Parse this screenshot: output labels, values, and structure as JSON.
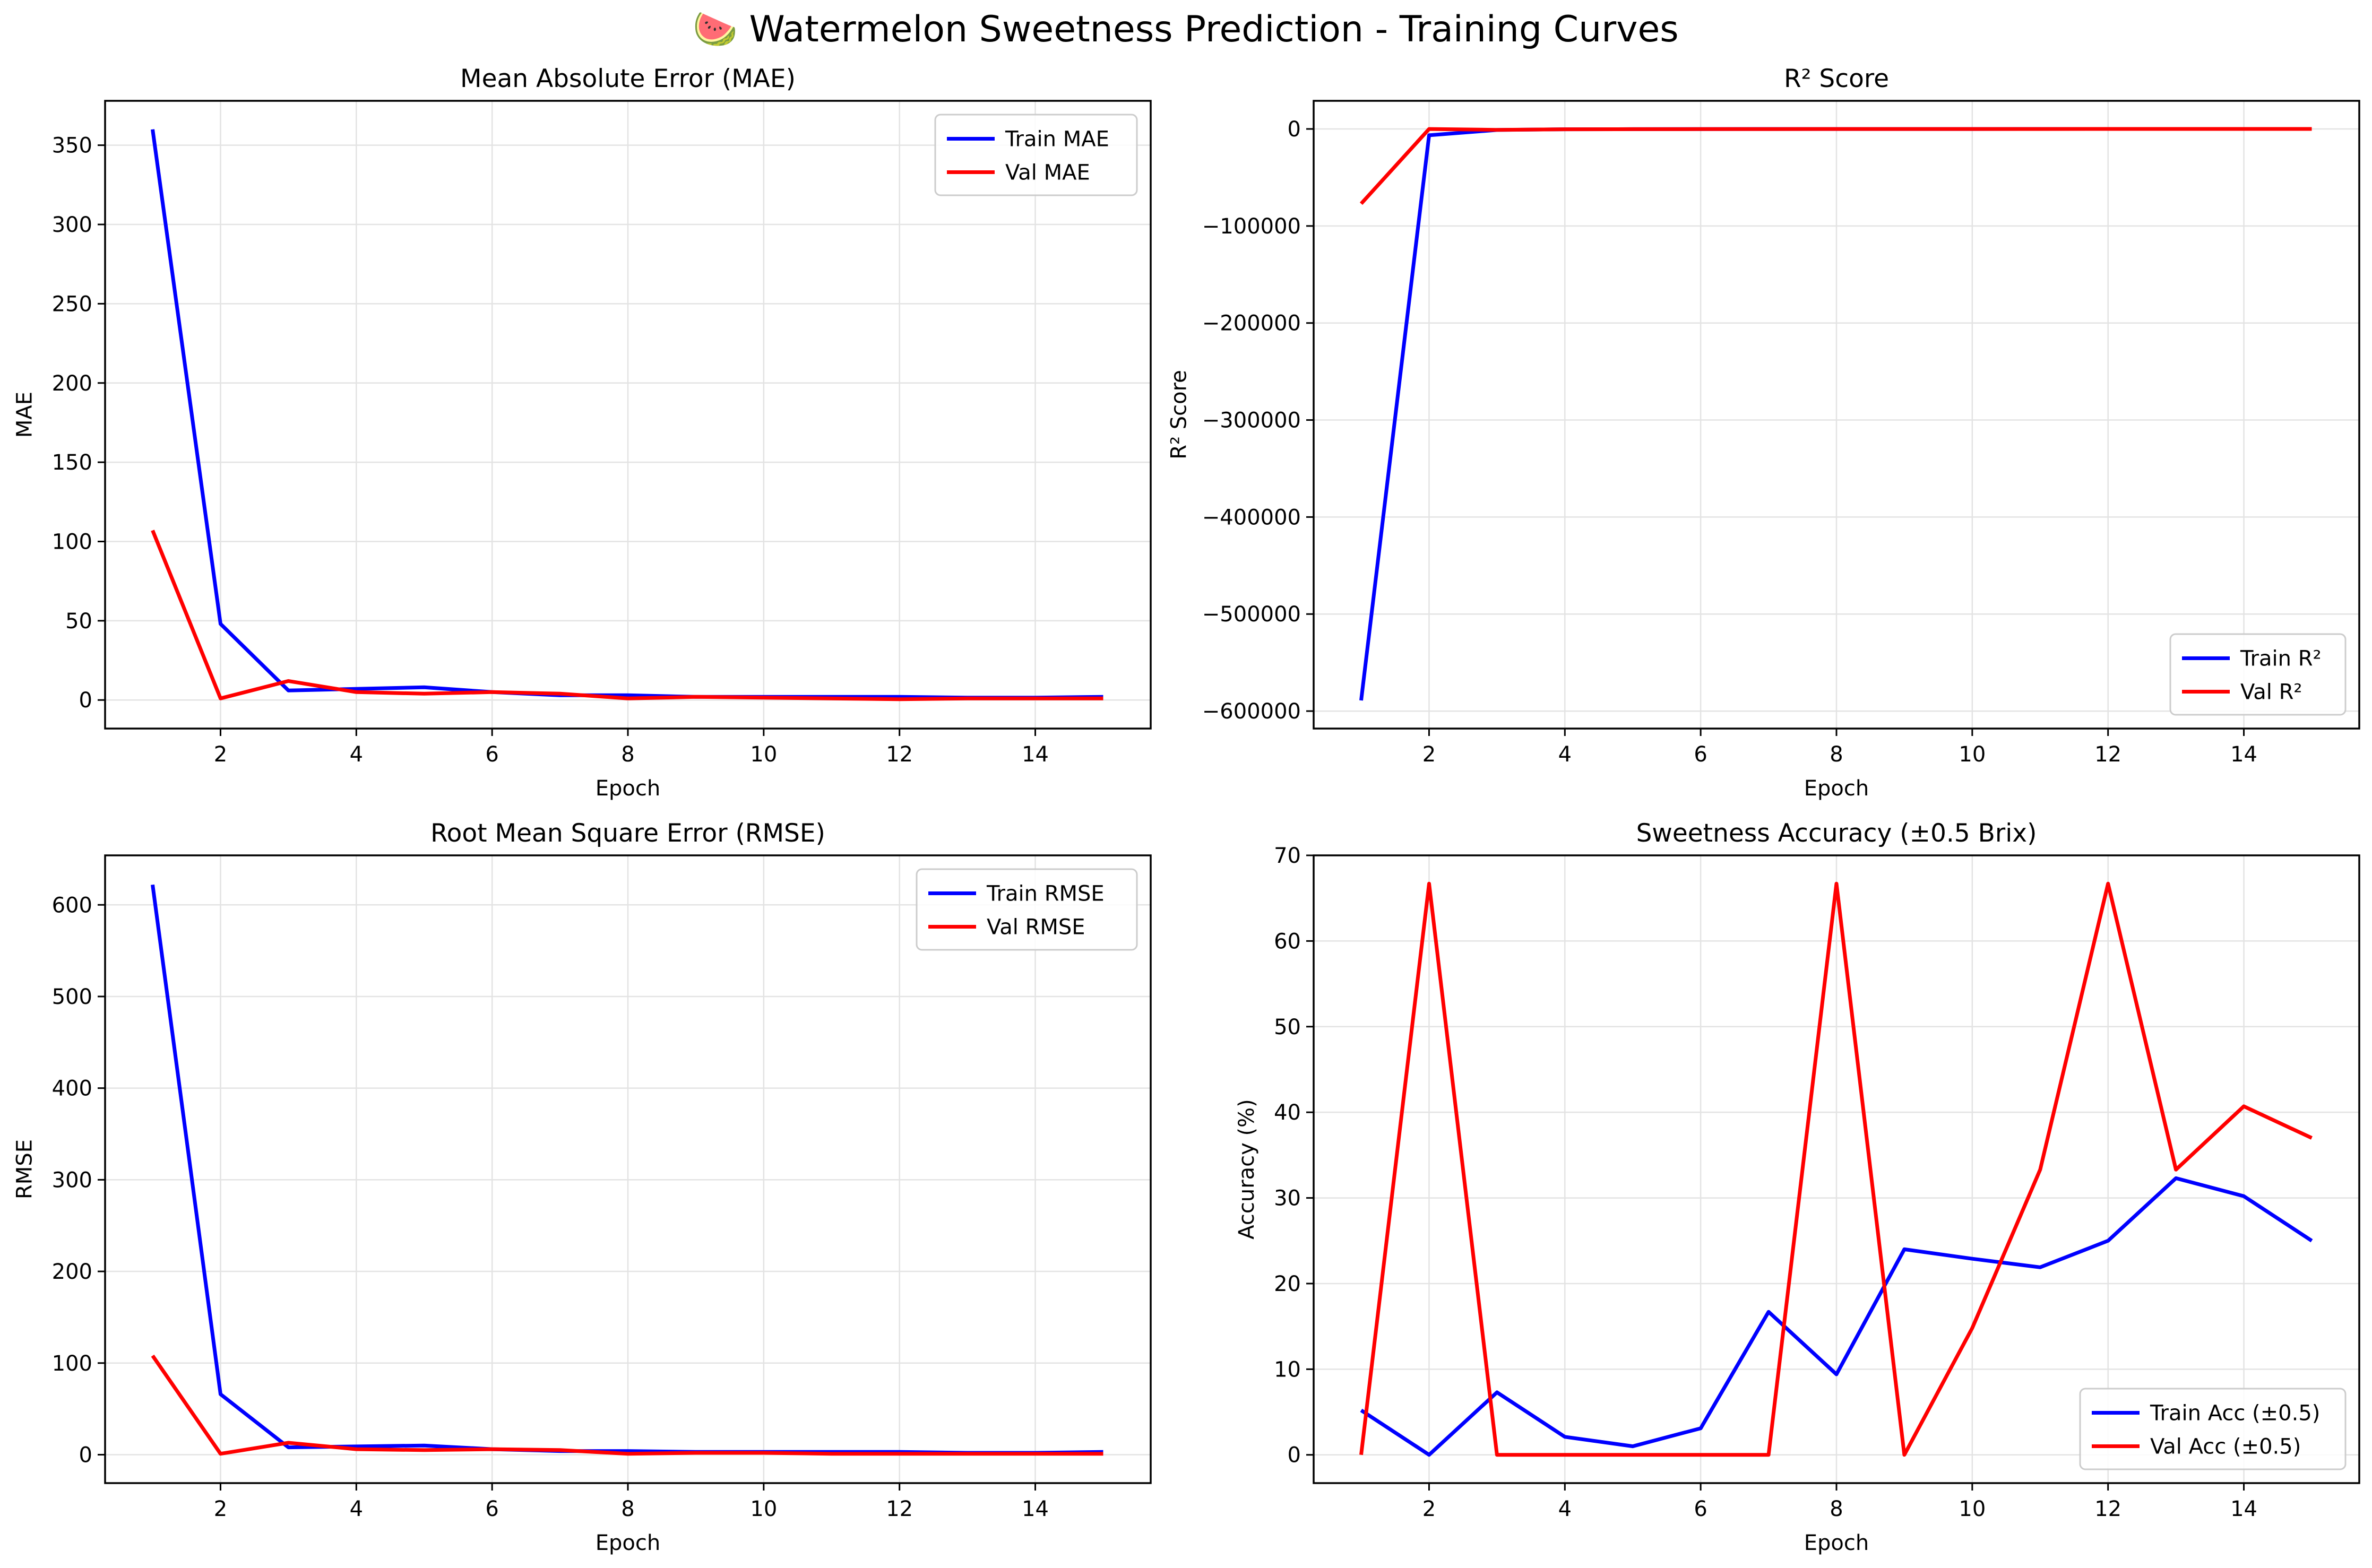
{
  "figure_title": "🍉 Watermelon Sweetness Prediction - Training Curves",
  "chart_data": [
    {
      "type": "line",
      "title": "Mean Absolute Error (MAE)",
      "xlabel": "Epoch",
      "ylabel": "MAE",
      "x": [
        1,
        2,
        3,
        4,
        5,
        6,
        7,
        8,
        9,
        10,
        11,
        12,
        13,
        14,
        15
      ],
      "xlim": [
        0.3,
        15.7
      ],
      "ylim": [
        -18,
        378
      ],
      "xticks": [
        2,
        4,
        6,
        8,
        10,
        12,
        14
      ],
      "yticks": [
        0,
        50,
        100,
        150,
        200,
        250,
        300,
        350
      ],
      "ytick_labels": [
        "0",
        "50",
        "100",
        "150",
        "200",
        "250",
        "300",
        "350"
      ],
      "grid": true,
      "legend_loc": "upper right",
      "series": [
        {
          "name": "Train MAE",
          "color": "#0000ff",
          "values": [
            360,
            48,
            6,
            7,
            8,
            5,
            3,
            3,
            2,
            2,
            2,
            2,
            1.5,
            1.5,
            2
          ]
        },
        {
          "name": "Val MAE",
          "color": "#ff0000",
          "values": [
            107,
            1,
            12,
            5,
            4,
            5,
            4,
            1,
            2,
            1.5,
            1,
            0.5,
            1,
            1,
            1
          ]
        }
      ]
    },
    {
      "type": "line",
      "title": "R² Score",
      "xlabel": "Epoch",
      "ylabel": "R² Score",
      "x": [
        1,
        2,
        3,
        4,
        5,
        6,
        7,
        8,
        9,
        10,
        11,
        12,
        13,
        14,
        15
      ],
      "xlim": [
        0.3,
        15.7
      ],
      "ylim": [
        -618000,
        29000
      ],
      "xticks": [
        2,
        4,
        6,
        8,
        10,
        12,
        14
      ],
      "yticks": [
        -600000,
        -500000,
        -400000,
        -300000,
        -200000,
        -100000,
        0
      ],
      "ytick_labels": [
        "−600000",
        "−500000",
        "−400000",
        "−300000",
        "−200000",
        "−100000",
        "0"
      ],
      "grid": true,
      "legend_loc": "lower right",
      "series": [
        {
          "name": "Train R²",
          "color": "#0000ff",
          "values": [
            -589000,
            -6500,
            -1000,
            -300,
            -200,
            -100,
            -50,
            -50,
            -20,
            -20,
            -10,
            -10,
            -5,
            -5,
            -5
          ]
        },
        {
          "name": "Val R²",
          "color": "#ff0000",
          "values": [
            -77000,
            -50,
            -900,
            -300,
            -200,
            -150,
            -100,
            -50,
            -40,
            -30,
            -20,
            -10,
            -10,
            -5,
            -5
          ]
        }
      ]
    },
    {
      "type": "line",
      "title": "Root Mean Square Error (RMSE)",
      "xlabel": "Epoch",
      "ylabel": "RMSE",
      "x": [
        1,
        2,
        3,
        4,
        5,
        6,
        7,
        8,
        9,
        10,
        11,
        12,
        13,
        14,
        15
      ],
      "xlim": [
        0.3,
        15.7
      ],
      "ylim": [
        -31,
        654
      ],
      "xticks": [
        2,
        4,
        6,
        8,
        10,
        12,
        14
      ],
      "yticks": [
        0,
        100,
        200,
        300,
        400,
        500,
        600
      ],
      "ytick_labels": [
        "0",
        "100",
        "200",
        "300",
        "400",
        "500",
        "600"
      ],
      "grid": true,
      "legend_loc": "upper right",
      "series": [
        {
          "name": "Train RMSE",
          "color": "#0000ff",
          "values": [
            622,
            66,
            8,
            9,
            10,
            6,
            4,
            4,
            3,
            3,
            3,
            3,
            2,
            2,
            3
          ]
        },
        {
          "name": "Val RMSE",
          "color": "#ff0000",
          "values": [
            108,
            1,
            13,
            6,
            5,
            6,
            5,
            1,
            2,
            2,
            1,
            1,
            1,
            1,
            1
          ]
        }
      ]
    },
    {
      "type": "line",
      "title": "Sweetness Accuracy (±0.5 Brix)",
      "xlabel": "Epoch",
      "ylabel": "Accuracy (%)",
      "x": [
        1,
        2,
        3,
        4,
        5,
        6,
        7,
        8,
        9,
        10,
        11,
        12,
        13,
        14,
        15
      ],
      "xlim": [
        0.3,
        15.7
      ],
      "ylim": [
        -3.3,
        70
      ],
      "xticks": [
        2,
        4,
        6,
        8,
        10,
        12,
        14
      ],
      "yticks": [
        0,
        10,
        20,
        30,
        40,
        50,
        60,
        70
      ],
      "ytick_labels": [
        "0",
        "10",
        "20",
        "30",
        "40",
        "50",
        "60",
        "70"
      ],
      "grid": true,
      "legend_loc": "lower right",
      "series": [
        {
          "name": "Train Acc (±0.5)",
          "color": "#0000ff",
          "values": [
            5.2,
            0,
            7.3,
            2.1,
            1.0,
            3.1,
            16.7,
            9.4,
            24.0,
            22.9,
            21.9,
            25.0,
            32.3,
            30.2,
            25.0
          ]
        },
        {
          "name": "Val Acc (±0.5)",
          "color": "#ff0000",
          "values": [
            0,
            66.7,
            0,
            0,
            0,
            0,
            0,
            66.7,
            0,
            14.8,
            33.3,
            66.7,
            33.3,
            40.7,
            37.0
          ]
        }
      ]
    }
  ]
}
